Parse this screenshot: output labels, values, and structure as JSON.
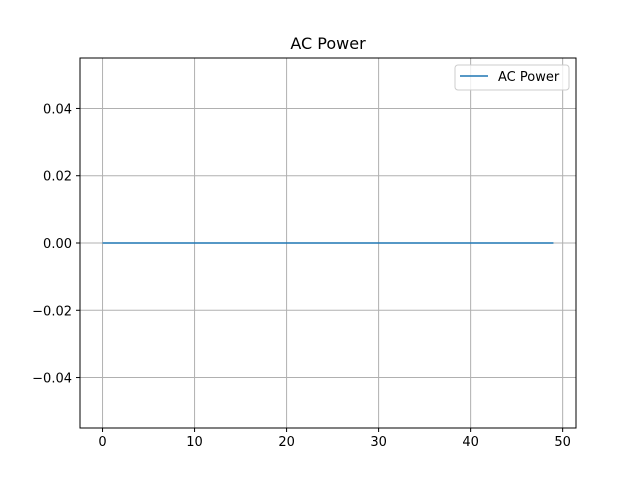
{
  "chart_data": {
    "type": "line",
    "title": "AC Power",
    "xlabel": "",
    "ylabel": "",
    "xlim": [
      -2.45,
      51.45
    ],
    "ylim": [
      -0.055,
      0.055
    ],
    "x_ticks": [
      0,
      10,
      20,
      30,
      40,
      50
    ],
    "y_ticks": [
      0.04,
      0.02,
      0.0,
      -0.02,
      -0.04
    ],
    "x_tick_labels": [
      "0",
      "10",
      "20",
      "30",
      "40",
      "50"
    ],
    "y_tick_labels": [
      "0.04",
      "0.02",
      "0.00",
      "−0.02",
      "−0.04"
    ],
    "grid": true,
    "legend_position": "upper right",
    "series": [
      {
        "name": "AC Power",
        "color": "#1f77b4",
        "x": [
          0,
          1,
          2,
          3,
          4,
          5,
          6,
          7,
          8,
          9,
          10,
          11,
          12,
          13,
          14,
          15,
          16,
          17,
          18,
          19,
          20,
          21,
          22,
          23,
          24,
          25,
          26,
          27,
          28,
          29,
          30,
          31,
          32,
          33,
          34,
          35,
          36,
          37,
          38,
          39,
          40,
          41,
          42,
          43,
          44,
          45,
          46,
          47,
          48,
          49
        ],
        "y": [
          0,
          0,
          0,
          0,
          0,
          0,
          0,
          0,
          0,
          0,
          0,
          0,
          0,
          0,
          0,
          0,
          0,
          0,
          0,
          0,
          0,
          0,
          0,
          0,
          0,
          0,
          0,
          0,
          0,
          0,
          0,
          0,
          0,
          0,
          0,
          0,
          0,
          0,
          0,
          0,
          0,
          0,
          0,
          0,
          0,
          0,
          0,
          0,
          0,
          0
        ]
      }
    ]
  }
}
